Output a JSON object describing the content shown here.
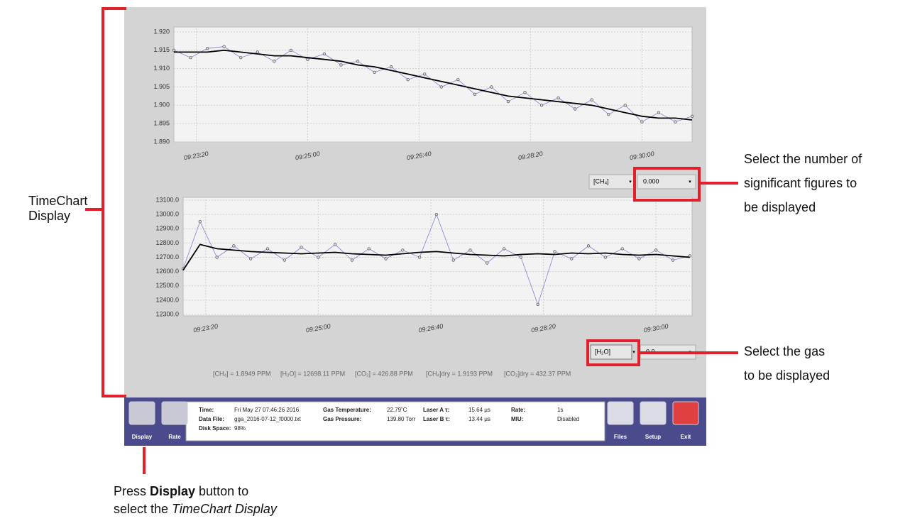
{
  "chart_data": [
    {
      "type": "line",
      "x": [
        33780,
        33795,
        33810,
        33825,
        33840,
        33855,
        33870,
        33885,
        33900,
        33915,
        33930,
        33945,
        33960,
        33975,
        33990,
        34005,
        34020,
        34035,
        34050,
        34065,
        34080,
        34095,
        34110,
        34125,
        34140,
        34155,
        34170,
        34185,
        34200,
        34215,
        34230,
        34245
      ],
      "series": [
        {
          "name": "raw",
          "color": "#8080d8",
          "values": [
            1.915,
            1.913,
            1.9155,
            1.916,
            1.913,
            1.9145,
            1.912,
            1.915,
            1.9125,
            1.914,
            1.911,
            1.912,
            1.909,
            1.9105,
            1.907,
            1.9085,
            1.905,
            1.907,
            1.903,
            1.905,
            1.901,
            1.9035,
            1.9,
            1.902,
            1.899,
            1.9015,
            1.8975,
            1.9,
            1.8955,
            1.898,
            1.8955,
            1.897
          ]
        },
        {
          "name": "smoothed",
          "color": "#000000",
          "values": [
            1.9145,
            1.9145,
            1.9145,
            1.915,
            1.9145,
            1.914,
            1.9135,
            1.9135,
            1.913,
            1.9125,
            1.912,
            1.911,
            1.9105,
            1.9095,
            1.9085,
            1.9075,
            1.9065,
            1.9055,
            1.9045,
            1.9035,
            1.9025,
            1.902,
            1.9015,
            1.901,
            1.9005,
            1.9,
            1.899,
            1.898,
            1.897,
            1.8965,
            1.8965,
            1.896
          ]
        }
      ],
      "xlim": [
        33780,
        34245
      ],
      "xticks": [
        {
          "value": 33800,
          "label": "09:23:20"
        },
        {
          "value": 33900,
          "label": "09:25:00"
        },
        {
          "value": 34000,
          "label": "09:26:40"
        },
        {
          "value": 34100,
          "label": "09:28:20"
        },
        {
          "value": 34200,
          "label": "09:30:00"
        }
      ],
      "ylim": [
        1.89,
        1.92
      ],
      "yticks": [
        {
          "value": 1.89,
          "label": "1.890"
        },
        {
          "value": 1.895,
          "label": "1.895"
        },
        {
          "value": 1.9,
          "label": "1.900"
        },
        {
          "value": 1.905,
          "label": "1.905"
        },
        {
          "value": 1.91,
          "label": "1.910"
        },
        {
          "value": 1.915,
          "label": "1.915"
        },
        {
          "value": 1.92,
          "label": "1.920"
        }
      ],
      "grid": true
    },
    {
      "type": "line",
      "x": [
        33780,
        33795,
        33810,
        33825,
        33840,
        33855,
        33870,
        33885,
        33900,
        33915,
        33930,
        33945,
        33960,
        33975,
        33990,
        34005,
        34020,
        34035,
        34050,
        34065,
        34080,
        34095,
        34110,
        34125,
        34140,
        34155,
        34170,
        34185,
        34200,
        34215,
        34230
      ],
      "series": [
        {
          "name": "raw",
          "color": "#8080d8",
          "values": [
            12620,
            12950,
            12700,
            12780,
            12690,
            12760,
            12680,
            12770,
            12700,
            12790,
            12680,
            12760,
            12690,
            12750,
            12700,
            13000,
            12680,
            12750,
            12660,
            12760,
            12700,
            12370,
            12740,
            12690,
            12780,
            12700,
            12760,
            12690,
            12750,
            12680,
            12710
          ]
        },
        {
          "name": "smoothed",
          "color": "#000000",
          "values": [
            12610,
            12790,
            12760,
            12750,
            12740,
            12735,
            12730,
            12725,
            12730,
            12735,
            12725,
            12720,
            12715,
            12725,
            12735,
            12740,
            12730,
            12720,
            12715,
            12710,
            12720,
            12725,
            12720,
            12730,
            12725,
            12730,
            12720,
            12715,
            12720,
            12710,
            12700
          ]
        }
      ],
      "xlim": [
        33780,
        34232
      ],
      "xticks": [
        {
          "value": 33800,
          "label": "09:23:20"
        },
        {
          "value": 33900,
          "label": "09:25:00"
        },
        {
          "value": 34000,
          "label": "09:26:40"
        },
        {
          "value": 34100,
          "label": "09:28:20"
        },
        {
          "value": 34200,
          "label": "09:30:00"
        }
      ],
      "ylim": [
        12300,
        13100
      ],
      "yticks": [
        {
          "value": 12300,
          "label": "12300.0"
        },
        {
          "value": 12400,
          "label": "12400.0"
        },
        {
          "value": 12500,
          "label": "12500.0"
        },
        {
          "value": 12600,
          "label": "12600.0"
        },
        {
          "value": 12700,
          "label": "12700.0"
        },
        {
          "value": 12800,
          "label": "12800.0"
        },
        {
          "value": 12900,
          "label": "12900.0"
        },
        {
          "value": 13000,
          "label": "13000.0"
        },
        {
          "value": 13100,
          "label": "13100.0"
        }
      ],
      "grid": true
    }
  ],
  "controls": {
    "gas_top": "[CH₄]",
    "figures_top": "0.000",
    "gas_bottom": "[H₂O]",
    "figures_bottom": "0.0"
  },
  "readout": [
    "[CH₄] = 1.8949 PPM",
    "[H₂O] = 12698.11 PPM",
    "[CO₂] = 426.88 PPM",
    "[CH₄]dry = 1.9193 PPM",
    "[CO₂]dry = 432.37 PPM"
  ],
  "toolbar": {
    "left_buttons": [
      "Display",
      "Rate"
    ],
    "right_buttons": [
      "Files",
      "Setup",
      "Exit"
    ],
    "info": [
      [
        "Time:",
        "Fri May 27 07:46:26 2016"
      ],
      [
        "Data File:",
        "gga_2016-07-12_f0000.txt"
      ],
      [
        "Disk Space:",
        "98%"
      ],
      [
        "Gas Temperature:",
        "22.79˚C"
      ],
      [
        "Gas Pressure:",
        "139.80 Torr"
      ],
      [
        "Laser A τ:",
        "15.64 μs"
      ],
      [
        "Laser B τ:",
        "13.44 μs"
      ],
      [
        "Rate:",
        "1s"
      ],
      [
        "MIU:",
        "Disabled"
      ]
    ]
  },
  "annotations": {
    "timechart": [
      "TimeChart",
      "Display"
    ],
    "figures": [
      "Select the number of",
      "significant figures to",
      "be displayed"
    ],
    "gas": [
      "Select the gas",
      "to be displayed"
    ],
    "press": [
      "Press",
      "Display",
      "button to",
      "select the",
      "TimeChart Display"
    ]
  }
}
